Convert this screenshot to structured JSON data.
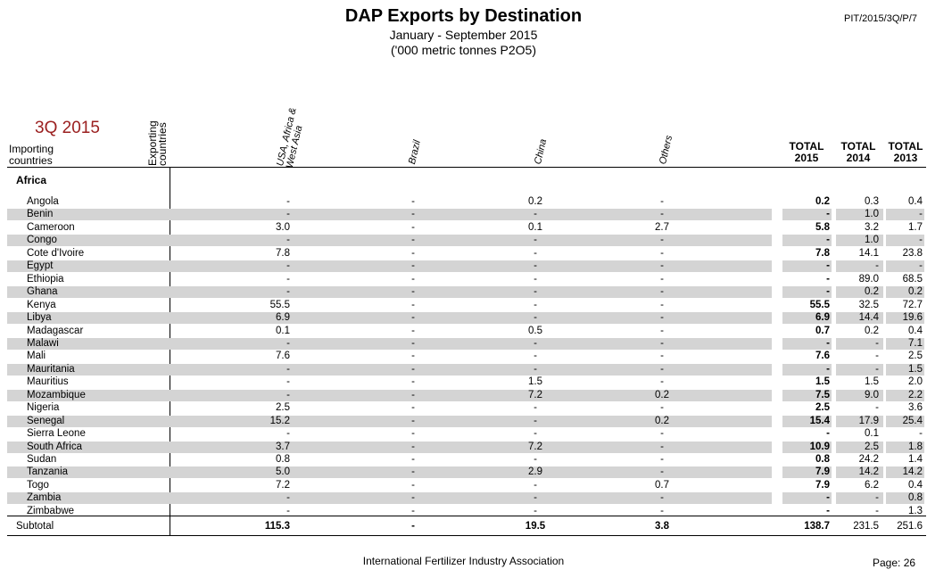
{
  "header": {
    "title": "DAP Exports by Destination",
    "subtitle": "January - September 2015",
    "units": "('000 metric tonnes P2O5)",
    "doc_ref": "PIT/2015/3Q/P/7",
    "period": "3Q 2015"
  },
  "table": {
    "row_axis_label": "Importing countries",
    "col_axis_label": "Exporting countries",
    "exporter_columns": [
      "USA, Africa & West Asia",
      "Brazil",
      "China",
      "Others"
    ],
    "total_columns": [
      {
        "top": "TOTAL",
        "bottom": "2015"
      },
      {
        "top": "TOTAL",
        "bottom": "2014"
      },
      {
        "top": "TOTAL",
        "bottom": "2013"
      }
    ],
    "region": "Africa",
    "rows": [
      {
        "country": "Angola",
        "usa": "-",
        "brazil": "-",
        "china": "0.2",
        "others": "-",
        "t2015": "0.2",
        "t2014": "0.3",
        "t2013": "0.4"
      },
      {
        "country": "Benin",
        "usa": "-",
        "brazil": "-",
        "china": "-",
        "others": "-",
        "t2015": "-",
        "t2014": "1.0",
        "t2013": "-"
      },
      {
        "country": "Cameroon",
        "usa": "3.0",
        "brazil": "-",
        "china": "0.1",
        "others": "2.7",
        "t2015": "5.8",
        "t2014": "3.2",
        "t2013": "1.7"
      },
      {
        "country": "Congo",
        "usa": "-",
        "brazil": "-",
        "china": "-",
        "others": "-",
        "t2015": "-",
        "t2014": "1.0",
        "t2013": "-"
      },
      {
        "country": "Cote d'Ivoire",
        "usa": "7.8",
        "brazil": "-",
        "china": "-",
        "others": "-",
        "t2015": "7.8",
        "t2014": "14.1",
        "t2013": "23.8"
      },
      {
        "country": "Egypt",
        "usa": "-",
        "brazil": "-",
        "china": "-",
        "others": "-",
        "t2015": "-",
        "t2014": "-",
        "t2013": "-"
      },
      {
        "country": "Ethiopia",
        "usa": "-",
        "brazil": "-",
        "china": "-",
        "others": "-",
        "t2015": "-",
        "t2014": "89.0",
        "t2013": "68.5"
      },
      {
        "country": "Ghana",
        "usa": "-",
        "brazil": "-",
        "china": "-",
        "others": "-",
        "t2015": "-",
        "t2014": "0.2",
        "t2013": "0.2"
      },
      {
        "country": "Kenya",
        "usa": "55.5",
        "brazil": "-",
        "china": "-",
        "others": "-",
        "t2015": "55.5",
        "t2014": "32.5",
        "t2013": "72.7"
      },
      {
        "country": "Libya",
        "usa": "6.9",
        "brazil": "-",
        "china": "-",
        "others": "-",
        "t2015": "6.9",
        "t2014": "14.4",
        "t2013": "19.6"
      },
      {
        "country": "Madagascar",
        "usa": "0.1",
        "brazil": "-",
        "china": "0.5",
        "others": "-",
        "t2015": "0.7",
        "t2014": "0.2",
        "t2013": "0.4"
      },
      {
        "country": "Malawi",
        "usa": "-",
        "brazil": "-",
        "china": "-",
        "others": "-",
        "t2015": "-",
        "t2014": "-",
        "t2013": "7.1"
      },
      {
        "country": "Mali",
        "usa": "7.6",
        "brazil": "-",
        "china": "-",
        "others": "-",
        "t2015": "7.6",
        "t2014": "-",
        "t2013": "2.5"
      },
      {
        "country": "Mauritania",
        "usa": "-",
        "brazil": "-",
        "china": "-",
        "others": "-",
        "t2015": "-",
        "t2014": "-",
        "t2013": "1.5"
      },
      {
        "country": "Mauritius",
        "usa": "-",
        "brazil": "-",
        "china": "1.5",
        "others": "-",
        "t2015": "1.5",
        "t2014": "1.5",
        "t2013": "2.0"
      },
      {
        "country": "Mozambique",
        "usa": "-",
        "brazil": "-",
        "china": "7.2",
        "others": "0.2",
        "t2015": "7.5",
        "t2014": "9.0",
        "t2013": "2.2"
      },
      {
        "country": "Nigeria",
        "usa": "2.5",
        "brazil": "-",
        "china": "-",
        "others": "-",
        "t2015": "2.5",
        "t2014": "-",
        "t2013": "3.6"
      },
      {
        "country": "Senegal",
        "usa": "15.2",
        "brazil": "-",
        "china": "-",
        "others": "0.2",
        "t2015": "15.4",
        "t2014": "17.9",
        "t2013": "25.4"
      },
      {
        "country": "Sierra Leone",
        "usa": "-",
        "brazil": "-",
        "china": "-",
        "others": "-",
        "t2015": "-",
        "t2014": "0.1",
        "t2013": "-"
      },
      {
        "country": "South Africa",
        "usa": "3.7",
        "brazil": "-",
        "china": "7.2",
        "others": "-",
        "t2015": "10.9",
        "t2014": "2.5",
        "t2013": "1.8"
      },
      {
        "country": "Sudan",
        "usa": "0.8",
        "brazil": "-",
        "china": "-",
        "others": "-",
        "t2015": "0.8",
        "t2014": "24.2",
        "t2013": "1.4"
      },
      {
        "country": "Tanzania",
        "usa": "5.0",
        "brazil": "-",
        "china": "2.9",
        "others": "-",
        "t2015": "7.9",
        "t2014": "14.2",
        "t2013": "14.2"
      },
      {
        "country": "Togo",
        "usa": "7.2",
        "brazil": "-",
        "china": "-",
        "others": "0.7",
        "t2015": "7.9",
        "t2014": "6.2",
        "t2013": "0.4"
      },
      {
        "country": "Zambia",
        "usa": "-",
        "brazil": "-",
        "china": "-",
        "others": "-",
        "t2015": "-",
        "t2014": "-",
        "t2013": "0.8"
      },
      {
        "country": "Zimbabwe",
        "usa": "-",
        "brazil": "-",
        "china": "-",
        "others": "-",
        "t2015": "-",
        "t2014": "-",
        "t2013": "1.3"
      }
    ],
    "subtotal": {
      "label": "Subtotal",
      "usa": "115.3",
      "brazil": "-",
      "china": "19.5",
      "others": "3.8",
      "t2015": "138.7",
      "t2014": "231.5",
      "t2013": "251.6"
    }
  },
  "footer": {
    "organization": "International Fertilizer Industry Association",
    "page": "Page: 26"
  }
}
